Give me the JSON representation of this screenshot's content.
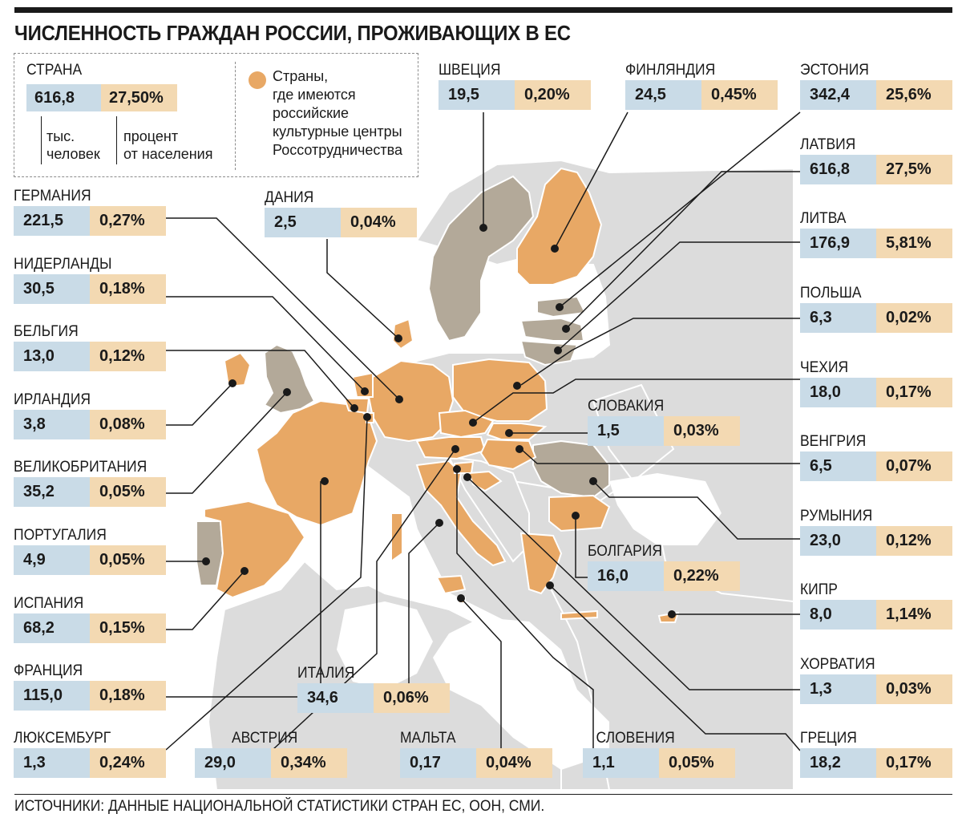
{
  "title": "ЧИСЛЕННОСТЬ ГРАЖДАН РОССИИ, ПРОЖИВАЮЩИХ В ЕС",
  "legend": {
    "country_label": "СТРАНА",
    "example_value": "616,8",
    "example_percent": "27,50%",
    "value_note_1": "тыс.",
    "value_note_2": "человек",
    "percent_note_1": "процент",
    "percent_note_2": "от населения",
    "dot_text_1": "Страны,",
    "dot_text_2": "где имеются",
    "dot_text_3": "российские",
    "dot_text_4": "культурные центры",
    "dot_text_5": "Россотрудничества"
  },
  "colors": {
    "value_box": "#c9dbe7",
    "percent_box": "#f3d9b2",
    "center_country": "#e8a865",
    "other_country": "#b3a999",
    "non_eu_land": "#dcdcdc",
    "sea": "#ffffff"
  },
  "countries": [
    {
      "id": "sweden",
      "name": "ШВЕЦИЯ",
      "value": "19,5",
      "percent": "0,20%"
    },
    {
      "id": "finland",
      "name": "ФИНЛЯНДИЯ",
      "value": "24,5",
      "percent": "0,45%"
    },
    {
      "id": "estonia",
      "name": "ЭСТОНИЯ",
      "value": "342,4",
      "percent": "25,6%"
    },
    {
      "id": "latvia",
      "name": "ЛАТВИЯ",
      "value": "616,8",
      "percent": "27,5%"
    },
    {
      "id": "lithuania",
      "name": "ЛИТВА",
      "value": "176,9",
      "percent": "5,81%"
    },
    {
      "id": "poland",
      "name": "ПОЛЬША",
      "value": "6,3",
      "percent": "0,02%"
    },
    {
      "id": "czechia",
      "name": "ЧЕХИЯ",
      "value": "18,0",
      "percent": "0,17%"
    },
    {
      "id": "hungary",
      "name": "ВЕНГРИЯ",
      "value": "6,5",
      "percent": "0,07%"
    },
    {
      "id": "romania",
      "name": "РУМЫНИЯ",
      "value": "23,0",
      "percent": "0,12%"
    },
    {
      "id": "cyprus",
      "name": "КИПР",
      "value": "8,0",
      "percent": "1,14%"
    },
    {
      "id": "croatia",
      "name": "ХОРВАТИЯ",
      "value": "1,3",
      "percent": "0,03%"
    },
    {
      "id": "greece",
      "name": "ГРЕЦИЯ",
      "value": "18,2",
      "percent": "0,17%"
    },
    {
      "id": "germany",
      "name": "ГЕРМАНИЯ",
      "value": "221,5",
      "percent": "0,27%"
    },
    {
      "id": "netherlands",
      "name": "НИДЕРЛАНДЫ",
      "value": "30,5",
      "percent": "0,18%"
    },
    {
      "id": "belgium",
      "name": "БЕЛЬГИЯ",
      "value": "13,0",
      "percent": "0,12%"
    },
    {
      "id": "ireland",
      "name": "ИРЛАНДИЯ",
      "value": "3,8",
      "percent": "0,08%"
    },
    {
      "id": "uk",
      "name": "ВЕЛИКОБРИТАНИЯ",
      "value": "35,2",
      "percent": "0,05%"
    },
    {
      "id": "portugal",
      "name": "ПОРТУГАЛИЯ",
      "value": "4,9",
      "percent": "0,05%"
    },
    {
      "id": "spain",
      "name": "ИСПАНИЯ",
      "value": "68,2",
      "percent": "0,15%"
    },
    {
      "id": "france",
      "name": "ФРАНЦИЯ",
      "value": "115,0",
      "percent": "0,18%"
    },
    {
      "id": "luxembourg",
      "name": "ЛЮКСЕМБУРГ",
      "value": "1,3",
      "percent": "0,24%"
    },
    {
      "id": "denmark",
      "name": "ДАНИЯ",
      "value": "2,5",
      "percent": "0,04%"
    },
    {
      "id": "slovakia",
      "name": "СЛОВАКИЯ",
      "value": "1,5",
      "percent": "0,03%"
    },
    {
      "id": "bulgaria",
      "name": "БОЛГАРИЯ",
      "value": "16,0",
      "percent": "0,22%"
    },
    {
      "id": "italy",
      "name": "ИТАЛИЯ",
      "value": "34,6",
      "percent": "0,06%"
    },
    {
      "id": "austria",
      "name": "АВСТРИЯ",
      "value": "29,0",
      "percent": "0,34%"
    },
    {
      "id": "malta",
      "name": "МАЛЬТА",
      "value": "0,17",
      "percent": "0,04%"
    },
    {
      "id": "slovenia",
      "name": "СЛОВЕНИЯ",
      "value": "1,1",
      "percent": "0,05%"
    }
  ],
  "source": "ИСТОЧНИКИ: ДАННЫЕ НАЦИОНАЛЬНОЙ СТАТИСТИКИ СТРАН ЕС, ООН, СМИ."
}
